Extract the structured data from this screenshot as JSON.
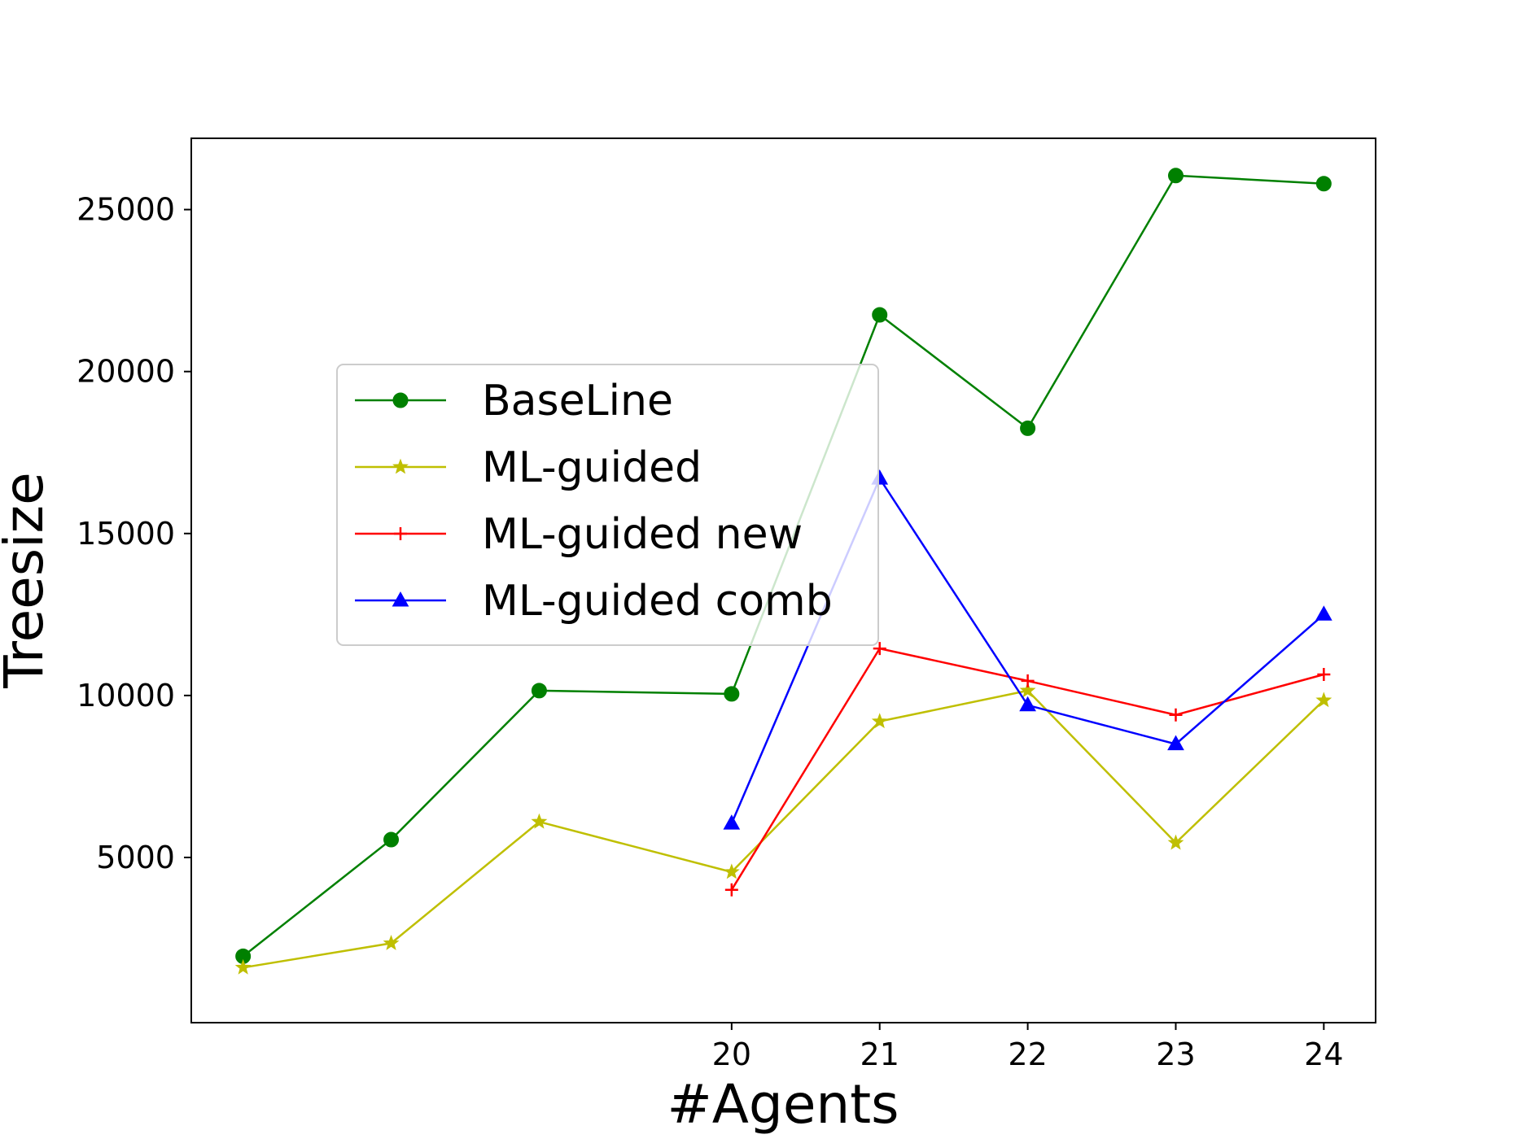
{
  "chart_data": {
    "type": "line",
    "title": "",
    "xlabel": "#Agents",
    "ylabel": "Treesize",
    "x_ticks": [
      "20",
      "21",
      "22",
      "23",
      "24"
    ],
    "y_ticks": [
      "5000",
      "10000",
      "15000",
      "20000",
      "25000"
    ],
    "xlim": [
      16.35,
      24.35
    ],
    "ylim": [
      -100,
      27200
    ],
    "grid": false,
    "legend_position": "center-left",
    "x": [
      16.7,
      17.7,
      18.7,
      20,
      21,
      22,
      23,
      24
    ],
    "series": [
      {
        "name": "BaseLine",
        "color": "#008000",
        "marker": "circle",
        "x": [
          16.7,
          17.7,
          18.7,
          20,
          21,
          22,
          23,
          24
        ],
        "values": [
          1950,
          5550,
          10150,
          10050,
          21750,
          18250,
          26050,
          25800
        ]
      },
      {
        "name": "ML-guided",
        "color": "#bfbf00",
        "marker": "star",
        "x": [
          16.7,
          17.7,
          18.7,
          20,
          21,
          22,
          23,
          24
        ],
        "values": [
          1600,
          2350,
          6100,
          4550,
          9200,
          10150,
          5450,
          9850
        ]
      },
      {
        "name": "ML-guided new",
        "color": "#ff0000",
        "marker": "plus",
        "x": [
          20,
          21,
          22,
          23,
          24
        ],
        "values": [
          4000,
          11450,
          10450,
          9400,
          10650
        ]
      },
      {
        "name": "ML-guided comb",
        "color": "#0000ff",
        "marker": "triangle",
        "x": [
          20,
          21,
          22,
          23,
          24
        ],
        "values": [
          6050,
          16700,
          9700,
          8500,
          12500
        ]
      }
    ]
  }
}
